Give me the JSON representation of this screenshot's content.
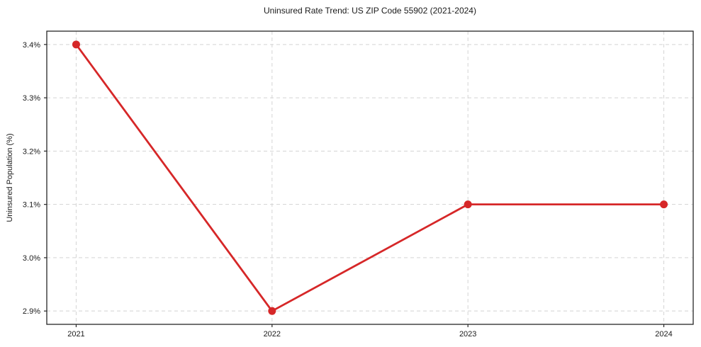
{
  "chart_data": {
    "type": "line",
    "title": "Uninsured Rate Trend: US ZIP Code 55902 (2021-2024)",
    "xlabel": "",
    "ylabel": "Uninsured Population (%)",
    "x": [
      2021,
      2022,
      2023,
      2024
    ],
    "series": [
      {
        "values": [
          3.4,
          2.9,
          3.1,
          3.1
        ],
        "color": "#d62728",
        "marker": "circle"
      }
    ],
    "x_ticks": [
      2021,
      2022,
      2023,
      2024
    ],
    "x_tick_labels": [
      "2021",
      "2022",
      "2023",
      "2024"
    ],
    "y_ticks": [
      2.9,
      3.0,
      3.1,
      3.2,
      3.3,
      3.4
    ],
    "y_tick_labels": [
      "2.9%",
      "3.0%",
      "3.1%",
      "3.2%",
      "3.3%",
      "3.4%"
    ],
    "xlim": [
      2020.85,
      2024.15
    ],
    "ylim": [
      2.875,
      3.425
    ],
    "grid": "dashed",
    "grid_color": "#d4d4d4",
    "spine_color": "#262626",
    "background": "#ffffff",
    "legend": "none"
  }
}
